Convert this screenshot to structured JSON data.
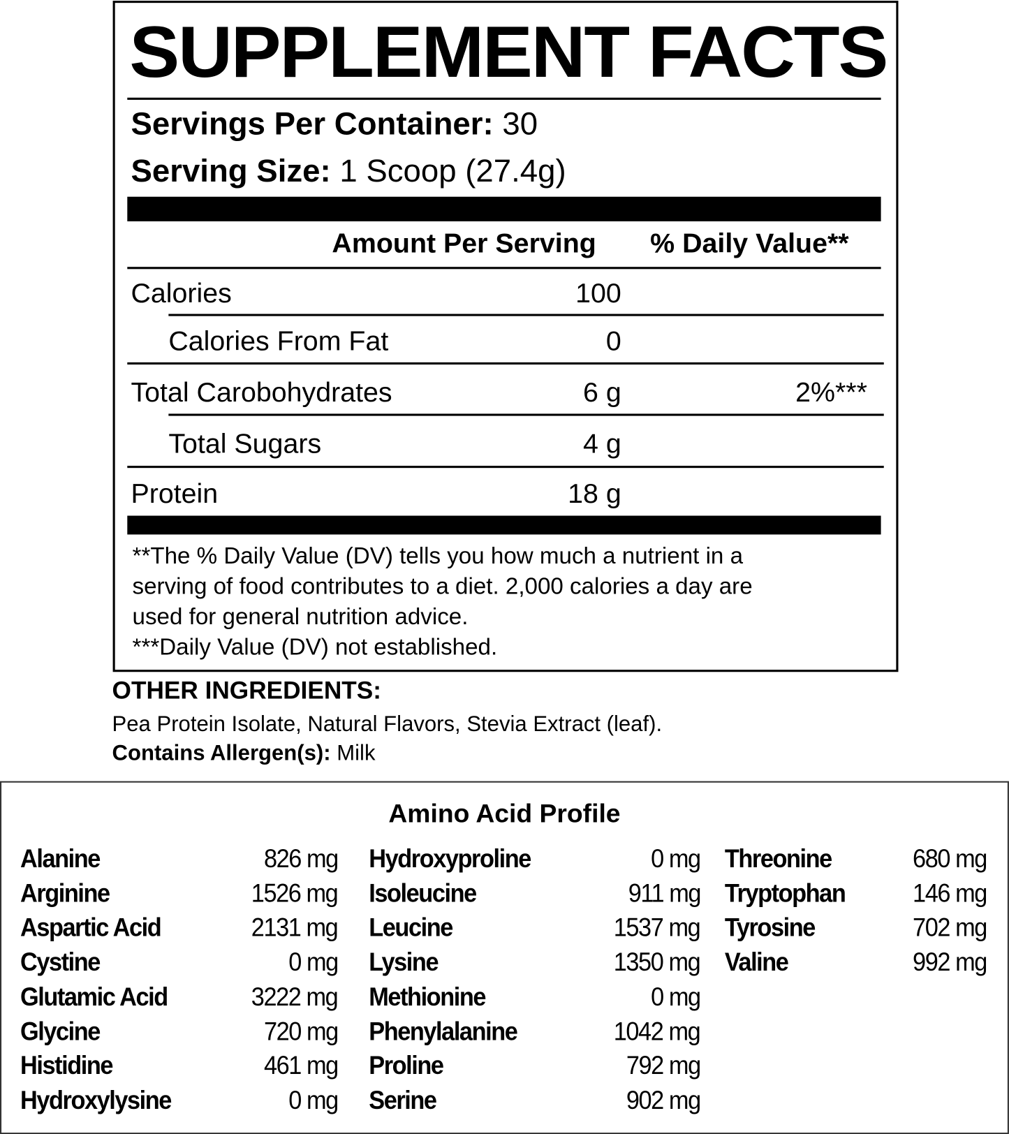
{
  "facts": {
    "title": "SUPPLEMENT FACTS",
    "servings_label": "Servings Per Container:",
    "servings_value": "30",
    "size_label": "Serving Size:",
    "size_value": "1 Scoop (27.4g)",
    "header_amount": "Amount Per Serving",
    "header_dv": "% Daily Value**",
    "rows": [
      {
        "name": "Calories",
        "amount": "100",
        "dv": ""
      },
      {
        "name": "Calories From Fat",
        "amount": "0",
        "dv": ""
      },
      {
        "name": "Total Carobohydrates",
        "amount": "6 g",
        "dv": "2%***"
      },
      {
        "name": "Total Sugars",
        "amount": "4 g",
        "dv": ""
      },
      {
        "name": "Protein",
        "amount": "18 g",
        "dv": ""
      }
    ],
    "footnotes": [
      "**The % Daily Value (DV) tells you how much a nutrient in a",
      "serving of food contributes to a diet. 2,000 calories a day are",
      "used for general nutrition advice.",
      "***Daily Value (DV) not established."
    ]
  },
  "other": {
    "heading": "OTHER INGREDIENTS:",
    "ingredients": "Pea Protein Isolate, Natural Flavors, Stevia Extract (leaf).",
    "allergen_label": "Contains Allergen(s):",
    "allergen_value": "Milk"
  },
  "amino": {
    "title": "Amino Acid Profile",
    "columns": [
      [
        {
          "name": "Alanine",
          "value": "826 mg"
        },
        {
          "name": "Arginine",
          "value": "1526 mg"
        },
        {
          "name": "Aspartic Acid",
          "value": "2131 mg"
        },
        {
          "name": "Cystine",
          "value": "0 mg"
        },
        {
          "name": "Glutamic Acid",
          "value": "3222 mg"
        },
        {
          "name": "Glycine",
          "value": "720 mg"
        },
        {
          "name": "Histidine",
          "value": "461 mg"
        },
        {
          "name": "Hydroxylysine",
          "value": "0 mg"
        }
      ],
      [
        {
          "name": "Hydroxyproline",
          "value": "0 mg"
        },
        {
          "name": "Isoleucine",
          "value": "911 mg"
        },
        {
          "name": "Leucine",
          "value": "1537 mg"
        },
        {
          "name": "Lysine",
          "value": "1350 mg"
        },
        {
          "name": "Methionine",
          "value": "0 mg"
        },
        {
          "name": "Phenylalanine",
          "value": "1042 mg"
        },
        {
          "name": "Proline",
          "value": "792 mg"
        },
        {
          "name": "Serine",
          "value": "902 mg"
        }
      ],
      [
        {
          "name": "Threonine",
          "value": "680 mg"
        },
        {
          "name": "Tryptophan",
          "value": "146 mg"
        },
        {
          "name": "Tyrosine",
          "value": "702 mg"
        },
        {
          "name": "Valine",
          "value": "992 mg"
        }
      ]
    ]
  }
}
